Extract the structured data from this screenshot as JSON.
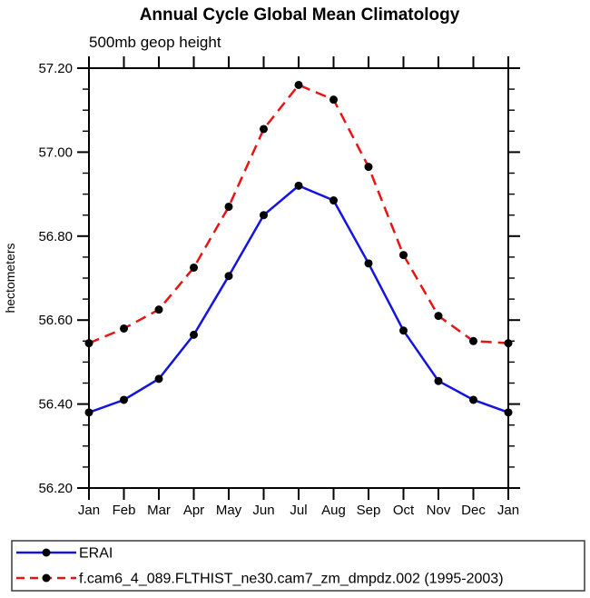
{
  "chart_data": {
    "type": "line",
    "title": "Annual Cycle Global Mean Climatology",
    "subtitle": "500mb geop height",
    "xlabel": "",
    "ylabel": "hectometers",
    "x_categories": [
      "Jan",
      "Feb",
      "Mar",
      "Apr",
      "May",
      "Jun",
      "Jul",
      "Aug",
      "Sep",
      "Oct",
      "Nov",
      "Dec",
      "Jan"
    ],
    "ylim": [
      56.2,
      57.2
    ],
    "ytick_major_step": 0.2,
    "ytick_minor_step": 0.05,
    "ytick_labels": [
      "56.20",
      "56.40",
      "56.60",
      "56.80",
      "57.00",
      "57.20"
    ],
    "grid": false,
    "legend_position": "bottom",
    "frame": "boxed-with-outward-ticks",
    "axis_color": "#000000",
    "marker": "filled-circle",
    "marker_color": "#000000",
    "series": [
      {
        "name": "ERAI",
        "color": "#1414e0",
        "style": "solid",
        "values": [
          56.38,
          56.41,
          56.46,
          56.565,
          56.705,
          56.85,
          56.92,
          56.885,
          56.735,
          56.575,
          56.455,
          56.41,
          56.38
        ]
      },
      {
        "name": "f.cam6_4_089.FLTHIST_ne30.cam7_zm_dmpdz.002 (1995-2003)",
        "color": "#e81414",
        "style": "dashed",
        "values": [
          56.545,
          56.58,
          56.625,
          56.725,
          56.87,
          57.055,
          57.16,
          57.125,
          56.965,
          56.755,
          56.61,
          56.55,
          56.545
        ]
      }
    ]
  }
}
